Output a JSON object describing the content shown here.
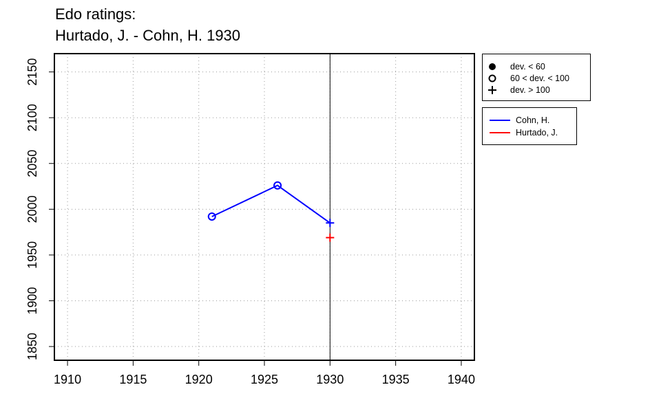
{
  "title": [
    "Edo ratings:",
    "Hurtado, J. - Cohn, H. 1930"
  ],
  "chart_data": {
    "type": "line",
    "title": "Edo ratings: Hurtado, J. - Cohn, H. 1930",
    "xlabel": "",
    "ylabel": "",
    "xlim": [
      1909,
      1941
    ],
    "ylim": [
      1835,
      2170
    ],
    "x_ticks": [
      1910,
      1915,
      1920,
      1925,
      1930,
      1935,
      1940
    ],
    "y_ticks": [
      1850,
      1900,
      1950,
      2000,
      2050,
      2100,
      2150
    ],
    "grid": true,
    "vline_x": 1930,
    "series": [
      {
        "name": "Cohn, H.",
        "color": "#0000ff",
        "points": [
          {
            "x": 1921,
            "y": 1992,
            "marker": "circle-open"
          },
          {
            "x": 1926,
            "y": 2026,
            "marker": "circle-open"
          },
          {
            "x": 1930,
            "y": 1985,
            "marker": "plus"
          }
        ]
      },
      {
        "name": "Hurtado, J.",
        "color": "#ff0000",
        "points": [
          {
            "x": 1930,
            "y": 1969,
            "marker": "plus"
          }
        ]
      }
    ],
    "marker_legend": [
      {
        "symbol": "circle-filled",
        "label": "dev. < 60"
      },
      {
        "symbol": "circle-open",
        "label": "60 < dev. < 100"
      },
      {
        "symbol": "plus",
        "label": "dev. > 100"
      }
    ],
    "legend_position": "top-right-outside"
  }
}
